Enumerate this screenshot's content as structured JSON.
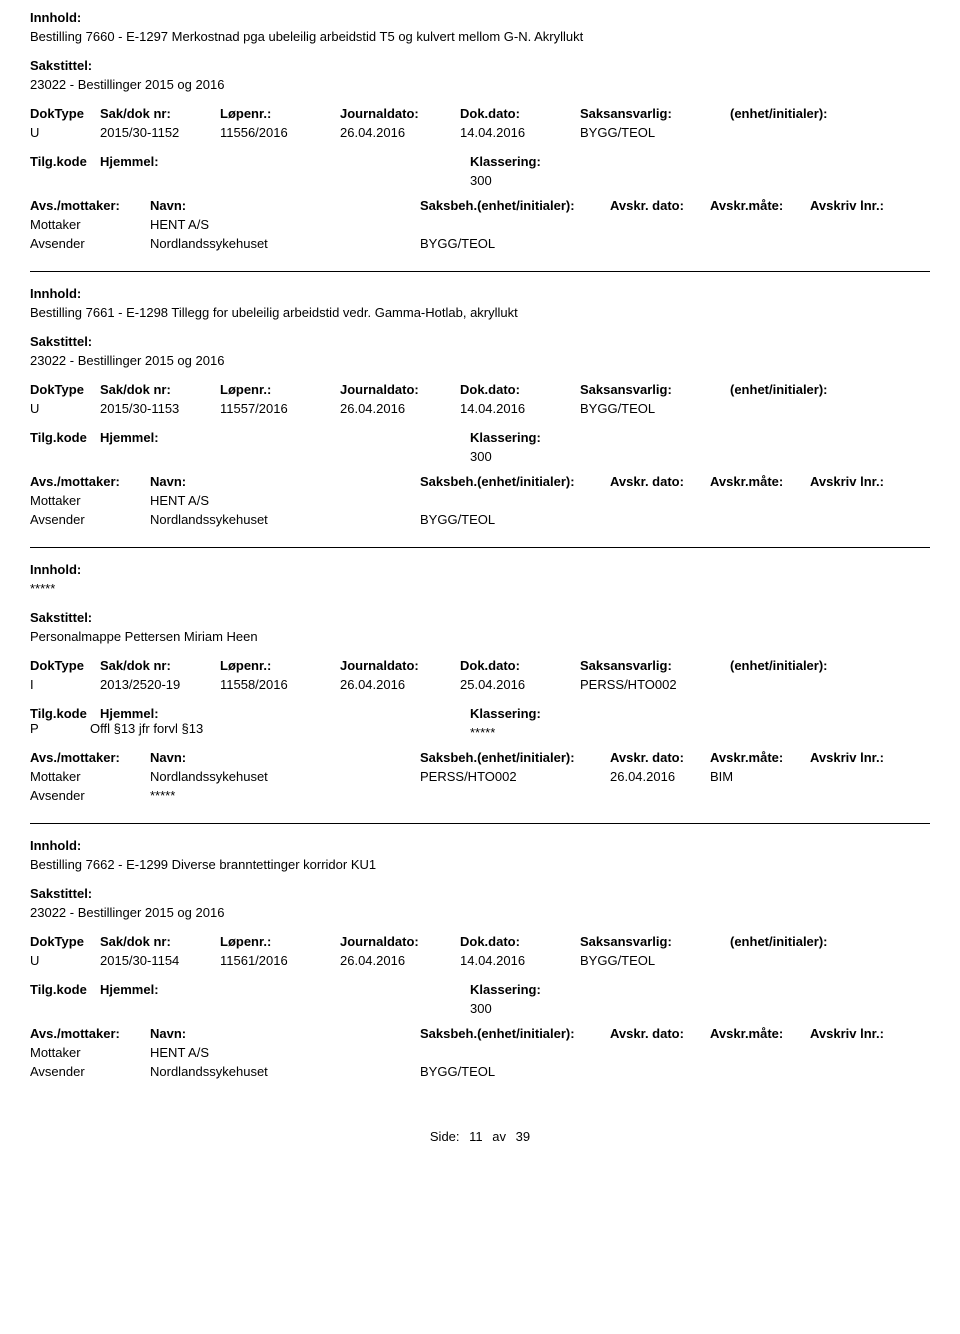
{
  "labels": {
    "innhold": "Innhold:",
    "sakstittel": "Sakstittel:",
    "doktype": "DokType",
    "sakdok": "Sak/dok nr:",
    "lopenr": "Løpenr.:",
    "journaldato": "Journaldato:",
    "dokdato": "Dok.dato:",
    "saksansvarlig": "Saksansvarlig:",
    "enhet": "(enhet/initialer):",
    "tilgkode": "Tilg.kode",
    "hjemmel": "Hjemmel:",
    "klassering": "Klassering:",
    "avsmottaker": "Avs./mottaker:",
    "navn": "Navn:",
    "saksbeh": "Saksbeh.",
    "saksbeh_enhet": "(enhet/initialer):",
    "avskrdato": "Avskr. dato:",
    "avskrmate": "Avskr.måte:",
    "avskrivlnr": "Avskriv lnr.:",
    "mottaker": "Mottaker",
    "avsender": "Avsender",
    "side": "Side:"
  },
  "entries": [
    {
      "innhold": "Bestilling 7660 - E-1297 Merkostnad pga ubeleilig arbeidstid T5 og kulvert mellom G-N. Akryllukt",
      "sakstittel": "23022 - Bestillinger 2015 og 2016",
      "doktype": "U",
      "sakdok": "2015/30-1152",
      "lopenr": "11556/2016",
      "journaldato": "26.04.2016",
      "dokdato": "14.04.2016",
      "saksansvarlig": "BYGG/TEOL",
      "enhet": "",
      "tilgkode": "",
      "hjemmel": "",
      "klassering": "300",
      "parties": [
        {
          "role": "Mottaker",
          "navn": "HENT A/S",
          "saksbeh": "",
          "avskrdato": "",
          "avskrmate": "",
          "avskrivlnr": ""
        },
        {
          "role": "Avsender",
          "navn": "Nordlandssykehuset",
          "saksbeh": "BYGG/TEOL",
          "avskrdato": "",
          "avskrmate": "",
          "avskrivlnr": ""
        }
      ]
    },
    {
      "innhold": "Bestilling 7661 - E-1298 Tillegg for ubeleilig arbeidstid vedr. Gamma-Hotlab, akryllukt",
      "sakstittel": "23022 - Bestillinger 2015 og 2016",
      "doktype": "U",
      "sakdok": "2015/30-1153",
      "lopenr": "11557/2016",
      "journaldato": "26.04.2016",
      "dokdato": "14.04.2016",
      "saksansvarlig": "BYGG/TEOL",
      "enhet": "",
      "tilgkode": "",
      "hjemmel": "",
      "klassering": "300",
      "parties": [
        {
          "role": "Mottaker",
          "navn": "HENT A/S",
          "saksbeh": "",
          "avskrdato": "",
          "avskrmate": "",
          "avskrivlnr": ""
        },
        {
          "role": "Avsender",
          "navn": "Nordlandssykehuset",
          "saksbeh": "BYGG/TEOL",
          "avskrdato": "",
          "avskrmate": "",
          "avskrivlnr": ""
        }
      ]
    },
    {
      "innhold": "*****",
      "sakstittel": "Personalmappe Pettersen Miriam Heen",
      "doktype": "I",
      "sakdok": "2013/2520-19",
      "lopenr": "11558/2016",
      "journaldato": "26.04.2016",
      "dokdato": "25.04.2016",
      "saksansvarlig": "PERSS/HTO002",
      "enhet": "",
      "tilgkode": "P",
      "hjemmel": "Offl §13 jfr forvl §13",
      "klassering": "*****",
      "parties": [
        {
          "role": "Mottaker",
          "navn": "Nordlandssykehuset",
          "saksbeh": "PERSS/HTO002",
          "avskrdato": "26.04.2016",
          "avskrmate": "BIM",
          "avskrivlnr": ""
        },
        {
          "role": "Avsender",
          "navn": "*****",
          "saksbeh": "",
          "avskrdato": "",
          "avskrmate": "",
          "avskrivlnr": ""
        }
      ]
    },
    {
      "innhold": "Bestilling 7662 - E-1299 Diverse branntettinger korridor KU1",
      "sakstittel": "23022 - Bestillinger 2015 og 2016",
      "doktype": "U",
      "sakdok": "2015/30-1154",
      "lopenr": "11561/2016",
      "journaldato": "26.04.2016",
      "dokdato": "14.04.2016",
      "saksansvarlig": "BYGG/TEOL",
      "enhet": "",
      "tilgkode": "",
      "hjemmel": "",
      "klassering": "300",
      "parties": [
        {
          "role": "Mottaker",
          "navn": "HENT A/S",
          "saksbeh": "",
          "avskrdato": "",
          "avskrmate": "",
          "avskrivlnr": ""
        },
        {
          "role": "Avsender",
          "navn": "Nordlandssykehuset",
          "saksbeh": "BYGG/TEOL",
          "avskrdato": "",
          "avskrmate": "",
          "avskrivlnr": ""
        }
      ]
    }
  ],
  "footer": {
    "page_current": "11",
    "page_sep": "av",
    "page_total": "39"
  }
}
